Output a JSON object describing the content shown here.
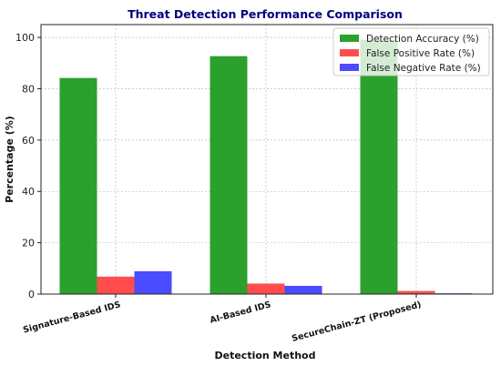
{
  "chart_data": {
    "type": "bar",
    "title": "Threat Detection Performance Comparison",
    "xlabel": "Detection Method",
    "ylabel": "Percentage (%)",
    "categories": [
      "Signature-Based IDS",
      "AI-Based IDS",
      "SecureChain-ZT (Proposed)"
    ],
    "series": [
      {
        "name": "Detection Accuracy (%)",
        "color": "#2ca02c",
        "values": [
          84.2,
          92.7,
          99.1
        ]
      },
      {
        "name": "False Positive Rate (%)",
        "color": "#ff4d4d",
        "values": [
          6.8,
          4.1,
          1.2
        ]
      },
      {
        "name": "False Negative Rate (%)",
        "color": "#4b4bff",
        "values": [
          8.9,
          3.2,
          0.3
        ]
      }
    ],
    "yticks": [
      0,
      20,
      40,
      60,
      80,
      100
    ],
    "ylim": [
      0,
      105
    ],
    "grid": true,
    "legend_position": "top-right"
  }
}
